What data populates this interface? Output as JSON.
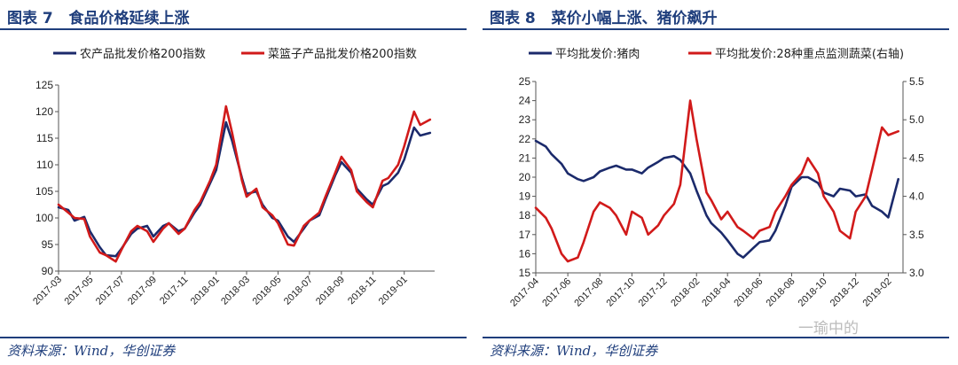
{
  "left": {
    "figure_title": "图表 7   食品价格延续上涨",
    "source": "资料来源：Wind，华创证券"
  },
  "right": {
    "figure_title": "图表 8   菜价小幅上涨、猪价飙升",
    "source": "资料来源：Wind，华创证券"
  },
  "watermark": "一瑜中的",
  "colors": {
    "navy": "#1b2a6b",
    "red": "#d11a1a",
    "title_blue": "#1f3e7c"
  },
  "chart_data": [
    {
      "type": "line",
      "title": "",
      "xlabel": "",
      "ylabel": "",
      "ylim": [
        90,
        125
      ],
      "yticks": [
        90,
        95,
        100,
        105,
        110,
        115,
        120,
        125
      ],
      "x_ticks": [
        "2017-03",
        "2017-05",
        "2017-07",
        "2017-09",
        "2017-11",
        "2018-01",
        "2018-03",
        "2018-05",
        "2018-07",
        "2018-09",
        "2018-11",
        "2019-01"
      ],
      "x_domain": [
        "2017-03",
        "2019-03"
      ],
      "legend_position": "top",
      "grid": false,
      "series": [
        {
          "name": "农产品批发价格200指数",
          "color": "#1b2a6b",
          "points": [
            [
              "2017-03",
              102.0
            ],
            [
              "2017-03-20",
              101.5
            ],
            [
              "2017-04",
              99.5
            ],
            [
              "2017-04-20",
              100.2
            ],
            [
              "2017-05",
              97.5
            ],
            [
              "2017-05-20",
              94.5
            ],
            [
              "2017-06",
              93.0
            ],
            [
              "2017-06-20",
              92.8
            ],
            [
              "2017-07",
              94.2
            ],
            [
              "2017-07-20",
              97.0
            ],
            [
              "2017-08",
              98.0
            ],
            [
              "2017-08-20",
              98.5
            ],
            [
              "2017-09",
              96.5
            ],
            [
              "2017-09-20",
              98.5
            ],
            [
              "2017-10",
              99.0
            ],
            [
              "2017-10-20",
              97.5
            ],
            [
              "2017-11",
              98.0
            ],
            [
              "2017-11-20",
              101.0
            ],
            [
              "2017-12",
              102.5
            ],
            [
              "2017-12-20",
              106.5
            ],
            [
              "2018-01",
              109.0
            ],
            [
              "2018-01-20",
              118.0
            ],
            [
              "2018-02",
              114.5
            ],
            [
              "2018-02-20",
              107.5
            ],
            [
              "2018-03",
              104.5
            ],
            [
              "2018-03-20",
              105.0
            ],
            [
              "2018-04",
              102.5
            ],
            [
              "2018-04-20",
              100.0
            ],
            [
              "2018-05",
              99.5
            ],
            [
              "2018-05-20",
              96.5
            ],
            [
              "2018-06",
              95.5
            ],
            [
              "2018-06-20",
              98.0
            ],
            [
              "2018-07",
              99.5
            ],
            [
              "2018-07-20",
              100.5
            ],
            [
              "2018-08",
              103.5
            ],
            [
              "2018-08-20",
              108.0
            ],
            [
              "2018-09",
              110.5
            ],
            [
              "2018-09-20",
              108.5
            ],
            [
              "2018-10",
              105.5
            ],
            [
              "2018-10-20",
              103.5
            ],
            [
              "2018-11",
              102.5
            ],
            [
              "2018-11-20",
              106.0
            ],
            [
              "2018-12",
              106.5
            ],
            [
              "2018-12-20",
              108.5
            ],
            [
              "2019-01",
              111.0
            ],
            [
              "2019-01-20",
              117.0
            ],
            [
              "2019-02",
              115.5
            ],
            [
              "2019-02-20",
              116.0
            ]
          ]
        },
        {
          "name": "菜篮子产品批发价格200指数",
          "color": "#d11a1a",
          "points": [
            [
              "2017-03",
              102.5
            ],
            [
              "2017-03-20",
              101.0
            ],
            [
              "2017-04",
              100.0
            ],
            [
              "2017-04-20",
              99.8
            ],
            [
              "2017-05",
              96.5
            ],
            [
              "2017-05-20",
              93.5
            ],
            [
              "2017-06",
              93.0
            ],
            [
              "2017-06-20",
              91.8
            ],
            [
              "2017-07",
              94.0
            ],
            [
              "2017-07-20",
              97.5
            ],
            [
              "2017-08",
              98.5
            ],
            [
              "2017-08-20",
              97.5
            ],
            [
              "2017-09",
              95.5
            ],
            [
              "2017-09-20",
              98.0
            ],
            [
              "2017-10",
              99.0
            ],
            [
              "2017-10-20",
              97.0
            ],
            [
              "2017-11",
              98.0
            ],
            [
              "2017-11-20",
              101.5
            ],
            [
              "2017-12",
              103.0
            ],
            [
              "2017-12-20",
              107.0
            ],
            [
              "2018-01",
              110.0
            ],
            [
              "2018-01-20",
              121.0
            ],
            [
              "2018-02",
              116.0
            ],
            [
              "2018-02-20",
              107.0
            ],
            [
              "2018-03",
              104.0
            ],
            [
              "2018-03-20",
              105.5
            ],
            [
              "2018-04",
              102.0
            ],
            [
              "2018-04-20",
              100.5
            ],
            [
              "2018-05",
              99.0
            ],
            [
              "2018-05-20",
              95.0
            ],
            [
              "2018-06",
              94.8
            ],
            [
              "2018-06-20",
              98.5
            ],
            [
              "2018-07",
              99.5
            ],
            [
              "2018-07-20",
              101.0
            ],
            [
              "2018-08",
              104.0
            ],
            [
              "2018-08-20",
              108.5
            ],
            [
              "2018-09",
              111.5
            ],
            [
              "2018-09-20",
              109.0
            ],
            [
              "2018-10",
              105.0
            ],
            [
              "2018-10-20",
              103.0
            ],
            [
              "2018-11",
              102.0
            ],
            [
              "2018-11-20",
              107.0
            ],
            [
              "2018-12",
              107.5
            ],
            [
              "2018-12-20",
              110.0
            ],
            [
              "2019-01",
              113.5
            ],
            [
              "2019-01-20",
              120.0
            ],
            [
              "2019-02",
              117.5
            ],
            [
              "2019-02-20",
              118.5
            ]
          ]
        }
      ]
    },
    {
      "type": "line",
      "title": "",
      "xlabel": "",
      "ylabel": "",
      "ylim": [
        15,
        25
      ],
      "yticks": [
        15,
        16,
        17,
        18,
        19,
        20,
        21,
        22,
        23,
        24,
        25
      ],
      "y2lim": [
        3.0,
        5.5
      ],
      "y2ticks": [
        "3.0",
        "3.5",
        "4.0",
        "4.5",
        "5.0",
        "5.5"
      ],
      "x_ticks": [
        "2017-04",
        "2017-06",
        "2017-08",
        "2017-10",
        "2017-12",
        "2018-02",
        "2018-04",
        "2018-06",
        "2018-08",
        "2018-10",
        "2018-12",
        "2019-02"
      ],
      "x_domain": [
        "2017-04",
        "2019-03"
      ],
      "legend_position": "top",
      "grid": false,
      "series": [
        {
          "name": "平均批发价:猪肉",
          "axis": "left",
          "color": "#1b2a6b",
          "points": [
            [
              "2017-04",
              21.9
            ],
            [
              "2017-04-20",
              21.6
            ],
            [
              "2017-05",
              21.2
            ],
            [
              "2017-05-20",
              20.7
            ],
            [
              "2017-06",
              20.2
            ],
            [
              "2017-06-20",
              19.9
            ],
            [
              "2017-07",
              19.8
            ],
            [
              "2017-07-20",
              20.0
            ],
            [
              "2017-08",
              20.3
            ],
            [
              "2017-08-20",
              20.5
            ],
            [
              "2017-09",
              20.6
            ],
            [
              "2017-09-20",
              20.4
            ],
            [
              "2017-10",
              20.4
            ],
            [
              "2017-10-20",
              20.2
            ],
            [
              "2017-11",
              20.5
            ],
            [
              "2017-11-20",
              20.8
            ],
            [
              "2017-12",
              21.0
            ],
            [
              "2017-12-20",
              21.1
            ],
            [
              "2018-01",
              20.9
            ],
            [
              "2018-01-20",
              20.2
            ],
            [
              "2018-02",
              19.3
            ],
            [
              "2018-02-20",
              18.0
            ],
            [
              "2018-03",
              17.6
            ],
            [
              "2018-03-20",
              17.1
            ],
            [
              "2018-04",
              16.7
            ],
            [
              "2018-04-20",
              16.0
            ],
            [
              "2018-05",
              15.8
            ],
            [
              "2018-05-20",
              16.3
            ],
            [
              "2018-06",
              16.6
            ],
            [
              "2018-06-20",
              16.7
            ],
            [
              "2018-07",
              17.2
            ],
            [
              "2018-07-20",
              18.5
            ],
            [
              "2018-08",
              19.5
            ],
            [
              "2018-08-20",
              20.0
            ],
            [
              "2018-09",
              20.0
            ],
            [
              "2018-09-20",
              19.7
            ],
            [
              "2018-10",
              19.2
            ],
            [
              "2018-10-20",
              19.0
            ],
            [
              "2018-11",
              19.4
            ],
            [
              "2018-11-20",
              19.3
            ],
            [
              "2018-12",
              19.0
            ],
            [
              "2018-12-20",
              19.1
            ],
            [
              "2019-01",
              18.5
            ],
            [
              "2019-01-20",
              18.2
            ],
            [
              "2019-02",
              17.9
            ],
            [
              "2019-02-20",
              19.9
            ]
          ]
        },
        {
          "name": "平均批发价:28种重点监测蔬菜(右轴)",
          "axis": "right",
          "color": "#d11a1a",
          "points": [
            [
              "2017-04",
              3.85
            ],
            [
              "2017-04-20",
              3.72
            ],
            [
              "2017-05",
              3.58
            ],
            [
              "2017-05-20",
              3.25
            ],
            [
              "2017-06",
              3.15
            ],
            [
              "2017-06-20",
              3.2
            ],
            [
              "2017-07",
              3.4
            ],
            [
              "2017-07-20",
              3.8
            ],
            [
              "2017-08",
              3.92
            ],
            [
              "2017-08-20",
              3.85
            ],
            [
              "2017-09",
              3.75
            ],
            [
              "2017-09-20",
              3.5
            ],
            [
              "2017-10",
              3.8
            ],
            [
              "2017-10-20",
              3.72
            ],
            [
              "2017-11",
              3.5
            ],
            [
              "2017-11-20",
              3.62
            ],
            [
              "2017-12",
              3.75
            ],
            [
              "2017-12-20",
              3.9
            ],
            [
              "2018-01",
              4.15
            ],
            [
              "2018-01-20",
              5.25
            ],
            [
              "2018-02",
              4.75
            ],
            [
              "2018-02-20",
              4.05
            ],
            [
              "2018-03",
              3.95
            ],
            [
              "2018-03-20",
              3.7
            ],
            [
              "2018-04",
              3.8
            ],
            [
              "2018-04-20",
              3.6
            ],
            [
              "2018-05",
              3.55
            ],
            [
              "2018-05-20",
              3.45
            ],
            [
              "2018-06",
              3.55
            ],
            [
              "2018-06-20",
              3.6
            ],
            [
              "2018-07",
              3.8
            ],
            [
              "2018-07-20",
              4.0
            ],
            [
              "2018-08",
              4.15
            ],
            [
              "2018-08-20",
              4.3
            ],
            [
              "2018-09",
              4.5
            ],
            [
              "2018-09-20",
              4.3
            ],
            [
              "2018-10",
              4.0
            ],
            [
              "2018-10-20",
              3.8
            ],
            [
              "2018-11",
              3.55
            ],
            [
              "2018-11-20",
              3.45
            ],
            [
              "2018-12",
              3.8
            ],
            [
              "2018-12-20",
              4.0
            ],
            [
              "2019-01",
              4.35
            ],
            [
              "2019-01-20",
              4.9
            ],
            [
              "2019-02",
              4.8
            ],
            [
              "2019-02-20",
              4.85
            ]
          ]
        }
      ]
    }
  ]
}
